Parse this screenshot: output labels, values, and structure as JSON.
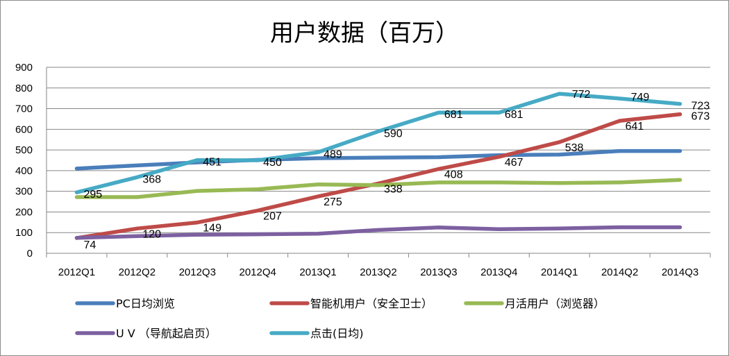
{
  "chart_data": {
    "type": "line",
    "title": "用户数据（百万）",
    "xlabel": "",
    "ylabel": "",
    "ylim": [
      0,
      900
    ],
    "yticks": [
      0,
      100,
      200,
      300,
      400,
      500,
      600,
      700,
      800,
      900
    ],
    "grid": true,
    "legend_position": "bottom",
    "categories": [
      "2012Q1",
      "2012Q2",
      "2012Q3",
      "2012Q4",
      "2013Q1",
      "2013Q2",
      "2013Q3",
      "2013Q4",
      "2014Q1",
      "2014Q2",
      "2014Q3"
    ],
    "series": [
      {
        "name": "PC日均浏览",
        "color": "#4a7ebb",
        "values": [
          410,
          425,
          440,
          452,
          460,
          463,
          465,
          475,
          478,
          495,
          495
        ],
        "labels": null
      },
      {
        "name": "智能机用户（安全卫士）",
        "color": "#be4b48",
        "values": [
          74,
          120,
          149,
          207,
          275,
          338,
          408,
          467,
          538,
          641,
          673
        ],
        "labels": [
          "74",
          "120",
          "149",
          "207",
          "275",
          "338",
          "408",
          "467",
          "538",
          "641",
          "673"
        ]
      },
      {
        "name": "月活用户（浏览器）",
        "color": "#98b954",
        "values": [
          272,
          272,
          302,
          310,
          333,
          330,
          343,
          343,
          340,
          343,
          355
        ],
        "labels": null
      },
      {
        "name": "U V （导航起启页）",
        "color": "#7d60a0",
        "values": [
          75,
          83,
          90,
          92,
          95,
          113,
          125,
          117,
          120,
          126,
          126
        ],
        "labels": null
      },
      {
        "name": "点击(日均)",
        "color": "#46aac5",
        "values": [
          295,
          368,
          451,
          450,
          489,
          590,
          681,
          681,
          772,
          749,
          723
        ],
        "labels": [
          "295",
          "368",
          "451",
          "450",
          "489",
          "590",
          "681",
          "681",
          "772",
          "749",
          "723"
        ]
      }
    ]
  }
}
